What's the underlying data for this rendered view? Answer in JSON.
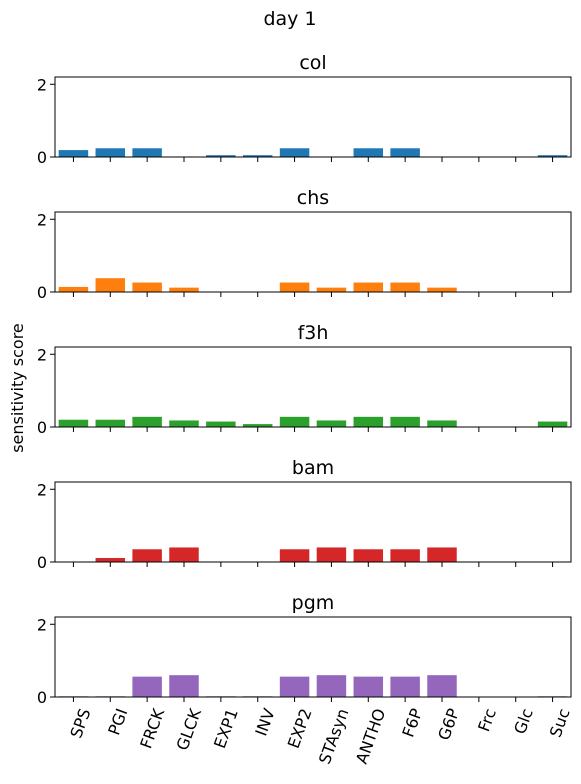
{
  "figure": {
    "suptitle": "day 1",
    "ylabel": "sensitivity score"
  },
  "chart_data": {
    "type": "bar",
    "categories": [
      "SPS",
      "PGI",
      "FRCK",
      "GLCK",
      "EXP1",
      "INV",
      "EXP2",
      "STAsyn",
      "ANTHO",
      "F6P",
      "G6P",
      "Frc",
      "Glc",
      "Suc"
    ],
    "ylim": [
      0,
      2.2
    ],
    "yticks": [
      0,
      2
    ],
    "xlabel_rotation_deg": -70,
    "grid": false,
    "panels": [
      {
        "title": "col",
        "color": "#1f77b4",
        "values": [
          0.19,
          0.24,
          0.24,
          0.0,
          0.05,
          0.05,
          0.24,
          0.0,
          0.24,
          0.24,
          0.0,
          0.0,
          0.0,
          0.05
        ]
      },
      {
        "title": "chs",
        "color": "#ff7f0e",
        "values": [
          0.14,
          0.38,
          0.26,
          0.12,
          0.0,
          0.0,
          0.26,
          0.12,
          0.26,
          0.26,
          0.12,
          0.0,
          0.0,
          0.0
        ]
      },
      {
        "title": "f3h",
        "color": "#2ca02c",
        "values": [
          0.2,
          0.2,
          0.28,
          0.18,
          0.15,
          0.08,
          0.28,
          0.18,
          0.28,
          0.28,
          0.18,
          0.0,
          0.0,
          0.15
        ]
      },
      {
        "title": "bam",
        "color": "#d62728",
        "values": [
          0.0,
          0.11,
          0.35,
          0.4,
          0.0,
          0.0,
          0.35,
          0.4,
          0.35,
          0.35,
          0.4,
          0.0,
          0.0,
          0.0
        ]
      },
      {
        "title": "pgm",
        "color": "#9467bd",
        "values": [
          0.02,
          0.02,
          0.56,
          0.6,
          0.02,
          0.02,
          0.56,
          0.6,
          0.56,
          0.56,
          0.6,
          0.0,
          0.0,
          0.02
        ]
      }
    ]
  }
}
